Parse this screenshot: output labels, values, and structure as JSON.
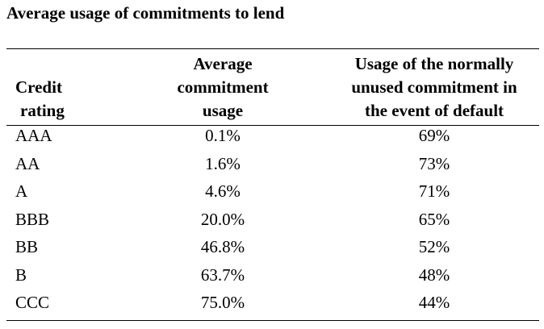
{
  "title": "Average usage of commitments to lend",
  "headers": {
    "col1": [
      "Credit",
      "rating"
    ],
    "col2": [
      "Average",
      "commitment",
      "usage"
    ],
    "col3": [
      "Usage of the normally",
      "unused commitment in",
      "the event of default"
    ]
  },
  "rows": [
    {
      "rating": "AAA",
      "average_usage": "0.1%",
      "default_usage": "69%"
    },
    {
      "rating": "AA",
      "average_usage": "1.6%",
      "default_usage": "73%"
    },
    {
      "rating": "A",
      "average_usage": "4.6%",
      "default_usage": "71%"
    },
    {
      "rating": "BBB",
      "average_usage": "20.0%",
      "default_usage": "65%"
    },
    {
      "rating": "BB",
      "average_usage": "46.8%",
      "default_usage": "52%"
    },
    {
      "rating": "B",
      "average_usage": "63.7%",
      "default_usage": "48%"
    },
    {
      "rating": "CCC",
      "average_usage": "75.0%",
      "default_usage": "44%"
    }
  ]
}
